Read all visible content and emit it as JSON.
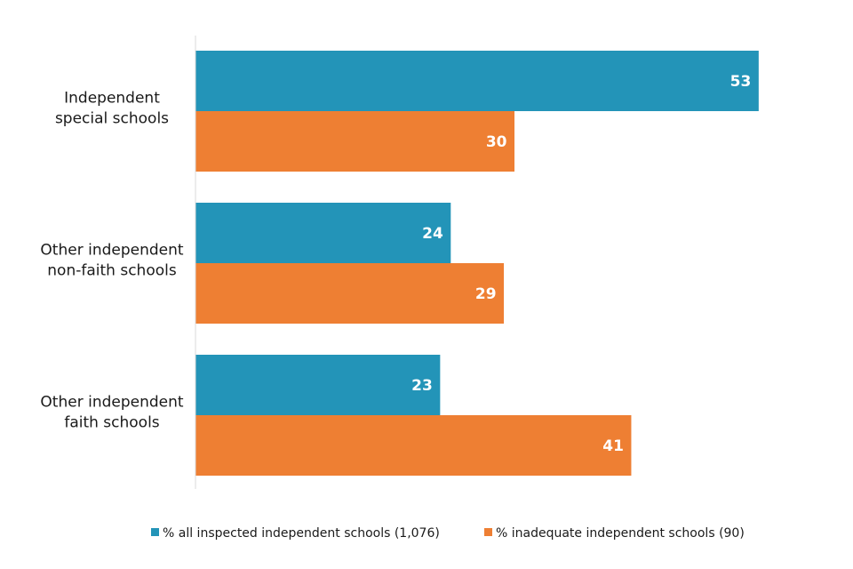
{
  "chart_data": {
    "type": "bar",
    "orientation": "horizontal",
    "title": "",
    "xlabel": "",
    "ylabel": "",
    "categories": [
      [
        "Independent",
        "special schools"
      ],
      [
        "Other independent",
        "non-faith schools"
      ],
      [
        "Other independent",
        "faith schools"
      ]
    ],
    "series": [
      {
        "name": "% all inspected independent schools (1,076)",
        "color": "#2394b8",
        "values": [
          53,
          24,
          23
        ]
      },
      {
        "name": "% inadequate independent schools (90)",
        "color": "#ee7f33",
        "values": [
          30,
          29,
          41
        ]
      }
    ],
    "data_labels": true,
    "grid": false,
    "legend_position": "bottom",
    "xlim": [
      0,
      60
    ]
  }
}
